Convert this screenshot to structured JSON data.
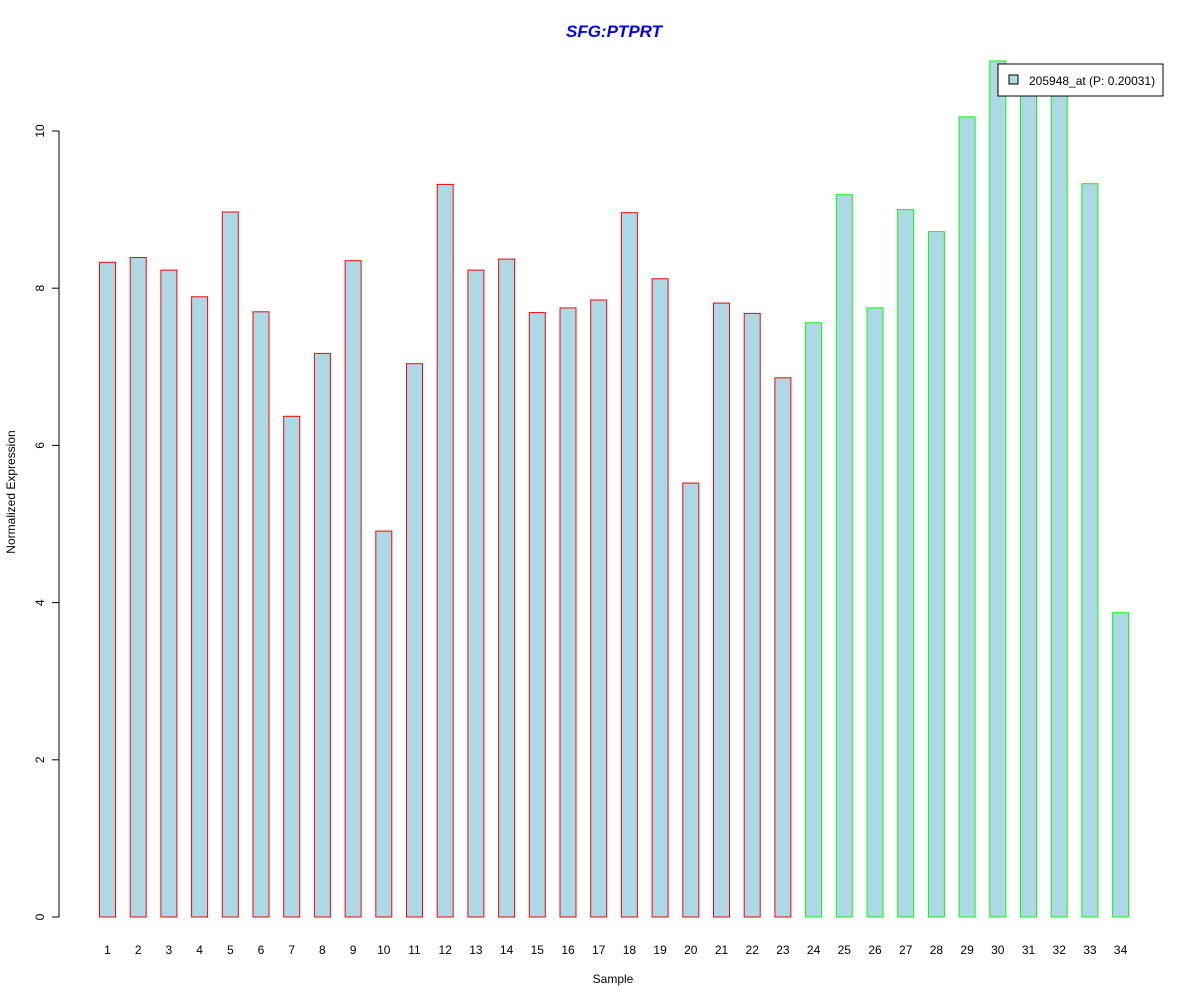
{
  "chart_data": {
    "type": "bar",
    "title": "SFG:PTPRT",
    "xlabel": "Sample",
    "ylabel": "Normalized Expression",
    "ylim": [
      0,
      11
    ],
    "yticks": [
      0,
      2,
      4,
      6,
      8,
      10
    ],
    "categories": [
      "1",
      "2",
      "3",
      "4",
      "5",
      "6",
      "7",
      "8",
      "9",
      "10",
      "11",
      "12",
      "13",
      "14",
      "15",
      "16",
      "17",
      "18",
      "19",
      "20",
      "21",
      "22",
      "23",
      "24",
      "25",
      "26",
      "27",
      "28",
      "29",
      "30",
      "31",
      "32",
      "33",
      "34"
    ],
    "series": [
      {
        "name": "205948_at (P: 0.20031)",
        "values": [
          8.33,
          8.39,
          8.23,
          7.89,
          8.97,
          7.7,
          6.37,
          7.17,
          8.35,
          4.91,
          7.04,
          9.32,
          8.23,
          8.37,
          7.69,
          7.75,
          7.85,
          8.96,
          8.12,
          5.52,
          7.81,
          7.68,
          6.86,
          7.56,
          9.19,
          7.75,
          9.0,
          8.72,
          10.18,
          10.89,
          10.48,
          10.61,
          9.33,
          3.87
        ]
      }
    ],
    "bar_fill": "#add8e6",
    "group_colors": {
      "group1": "#ff0000",
      "group2": "#00ff00"
    },
    "group1_count": 23,
    "title_color": "#0000ff",
    "legend_position": "top-right",
    "grid": false
  }
}
